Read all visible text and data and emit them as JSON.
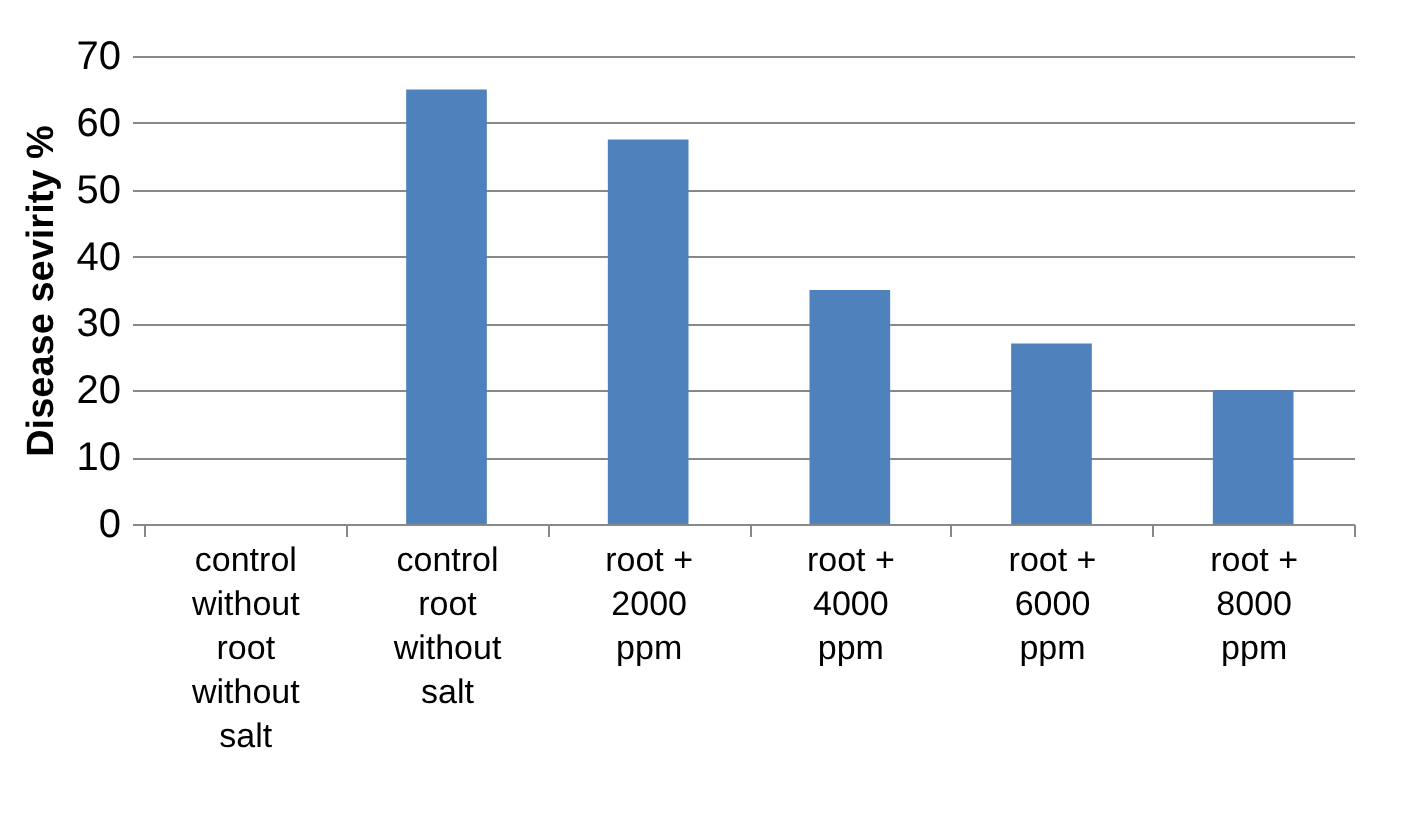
{
  "chart_data": {
    "type": "bar",
    "ylabel": "Disease sevirity %",
    "categories": [
      "control\nwithout\nroot\nwithout\nsalt",
      "control\nroot\nwithout\nsalt",
      "root +\n2000\nppm",
      "root +\n4000\nppm",
      "root +\n6000\nppm",
      "root +\n8000\nppm"
    ],
    "values": [
      0,
      65,
      57.5,
      35,
      27,
      20
    ],
    "color": "#4f81bd",
    "ylim": [
      0,
      70
    ],
    "yticks": [
      0,
      10,
      20,
      30,
      40,
      50,
      60,
      70
    ],
    "grid": "y"
  }
}
